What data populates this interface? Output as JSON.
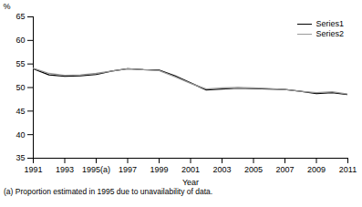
{
  "chart_data": {
    "type": "line",
    "xlabel": "Year",
    "ylabel": "%",
    "x": [
      1991,
      1992,
      1993,
      1994,
      1995,
      1996,
      1997,
      1998,
      1999,
      2000,
      2001,
      2002,
      2003,
      2004,
      2005,
      2006,
      2007,
      2008,
      2009,
      2010,
      2011
    ],
    "series": [
      {
        "name": "Series1",
        "color": "#000000",
        "values": [
          54.0,
          52.7,
          52.4,
          52.5,
          52.8,
          53.5,
          54.0,
          53.8,
          53.7,
          52.5,
          51.0,
          49.5,
          49.7,
          49.9,
          49.8,
          49.7,
          49.6,
          49.2,
          48.7,
          48.9,
          48.5
        ]
      },
      {
        "name": "Series2",
        "color": "#999999",
        "values": [
          54.1,
          53.0,
          52.6,
          52.7,
          53.0,
          53.5,
          54.0,
          53.8,
          53.6,
          52.3,
          50.9,
          49.7,
          49.9,
          50.0,
          49.9,
          49.8,
          49.6,
          49.2,
          48.9,
          49.1,
          48.6
        ]
      }
    ],
    "xlim": [
      1991,
      2011
    ],
    "xticks": [
      1991,
      1993,
      {
        "value": 1995,
        "label": "1995(a)"
      },
      1997,
      1999,
      2001,
      2003,
      2005,
      2007,
      2009,
      2011
    ],
    "ylim": [
      35,
      65
    ],
    "yticks": [
      35,
      40,
      45,
      50,
      55,
      60,
      65
    ],
    "grid": false,
    "legend": "upper right",
    "annotations": [
      "(a) Proportion estimated in 1995 due to unavailability of data."
    ]
  }
}
